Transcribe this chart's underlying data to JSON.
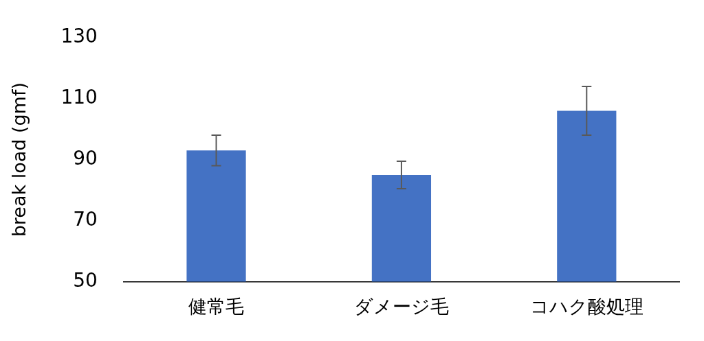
{
  "chart_data": {
    "type": "bar",
    "ylabel": "break load (gmf)",
    "categories": [
      "健常毛",
      "ダメージ毛",
      "コハク酸処理"
    ],
    "values": [
      93,
      85,
      106
    ],
    "errors": [
      5,
      4.5,
      8
    ],
    "color": "#4472c4",
    "ylim": [
      50,
      130
    ],
    "yticks": [
      50,
      70,
      90,
      110,
      130
    ],
    "grid": false,
    "legend": false
  }
}
